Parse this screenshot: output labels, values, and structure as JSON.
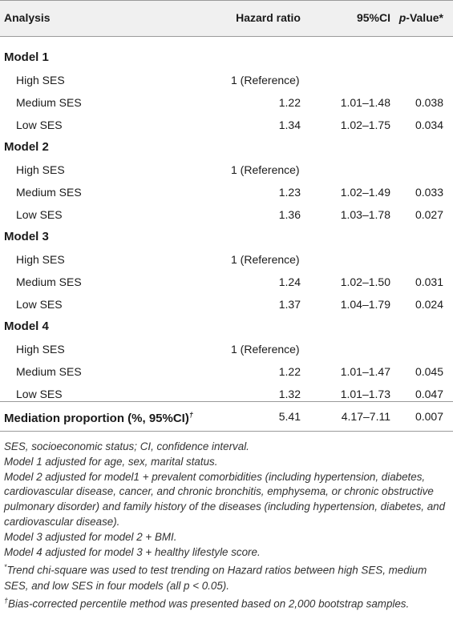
{
  "header": {
    "analysis": "Analysis",
    "hazard_ratio": "Hazard ratio",
    "ci": "95%CI",
    "p_prefix": "p",
    "p_suffix": "-Value*"
  },
  "models": [
    {
      "title": "Model 1",
      "rows": [
        {
          "label": "High SES",
          "hr": "1 (Reference)",
          "ci": "",
          "p": ""
        },
        {
          "label": "Medium SES",
          "hr": "1.22",
          "ci": "1.01–1.48",
          "p": "0.038"
        },
        {
          "label": "Low SES",
          "hr": "1.34",
          "ci": "1.02–1.75",
          "p": "0.034"
        }
      ]
    },
    {
      "title": "Model 2",
      "rows": [
        {
          "label": "High SES",
          "hr": "1 (Reference)",
          "ci": "",
          "p": ""
        },
        {
          "label": "Medium SES",
          "hr": "1.23",
          "ci": "1.02–1.49",
          "p": "0.033"
        },
        {
          "label": "Low SES",
          "hr": "1.36",
          "ci": "1.03–1.78",
          "p": "0.027"
        }
      ]
    },
    {
      "title": "Model 3",
      "rows": [
        {
          "label": "High SES",
          "hr": "1 (Reference)",
          "ci": "",
          "p": ""
        },
        {
          "label": "Medium SES",
          "hr": "1.24",
          "ci": "1.02–1.50",
          "p": "0.031"
        },
        {
          "label": "Low SES",
          "hr": "1.37",
          "ci": "1.04–1.79",
          "p": "0.024"
        }
      ]
    },
    {
      "title": "Model 4",
      "rows": [
        {
          "label": "High SES",
          "hr": "1 (Reference)",
          "ci": "",
          "p": ""
        },
        {
          "label": "Medium SES",
          "hr": "1.22",
          "ci": "1.01–1.47",
          "p": "0.045"
        },
        {
          "label": "Low SES",
          "hr": "1.32",
          "ci": "1.01–1.73",
          "p": "0.047"
        }
      ]
    }
  ],
  "mediation": {
    "label": "Mediation proportion (%, 95%CI)",
    "dagger": "†",
    "hr": "5.41",
    "ci": "4.17–7.11",
    "p": "0.007"
  },
  "footnotes": {
    "abbrev": "SES, socioeconomic status; CI, confidence interval.",
    "model1": "Model 1 adjusted for age, sex, marital status.",
    "model2": "Model 2 adjusted for model1 + prevalent comorbidities (including hypertension, diabetes, cardiovascular disease, cancer, and chronic bronchitis, emphysema, or chronic obstructive pulmonary disorder) and family history of the diseases (including hypertension, diabetes, and cardiovascular disease).",
    "model3": "Model 3 adjusted for model 2 + BMI.",
    "model4": "Model 4 adjusted for model 3 + healthy lifestyle score.",
    "star_symbol": "*",
    "star": "Trend chi-square was used to test trending on Hazard ratios between high SES, medium SES, and low SES in four models (all p < 0.05).",
    "dagger_symbol": "†",
    "dagger": "Bias-corrected percentile method was presented based on 2,000 bootstrap samples."
  }
}
